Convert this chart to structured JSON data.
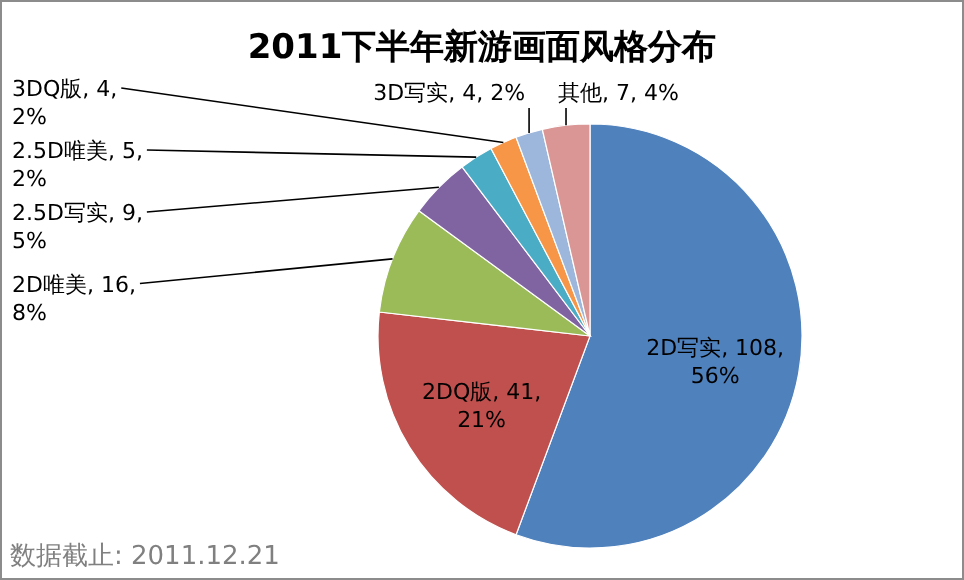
{
  "chart_data": {
    "type": "pie",
    "title": "2011下半年新游画面风格分布",
    "categories": [
      "2D写实",
      "2DQ版",
      "2D唯美",
      "2.5D写实",
      "2.5D唯美",
      "3DQ版",
      "3D写实",
      "其他"
    ],
    "values": [
      108,
      41,
      16,
      9,
      5,
      4,
      4,
      7
    ],
    "value_labels": [
      ", 108, 56%",
      ", 41, 21%",
      ", 16, 8%",
      ", 9, 5%",
      ", 5, 2%",
      ", 4, 2%",
      ", 4, 2%",
      ", 7, 4%"
    ],
    "colors": [
      "#4f81bd",
      "#c0504d",
      "#9bbb59",
      "#8064a2",
      "#4bacc6",
      "#f79646",
      "#9db7dc",
      "#d99694"
    ],
    "annotations": [
      "数据截止: 2011.12.21"
    ]
  }
}
